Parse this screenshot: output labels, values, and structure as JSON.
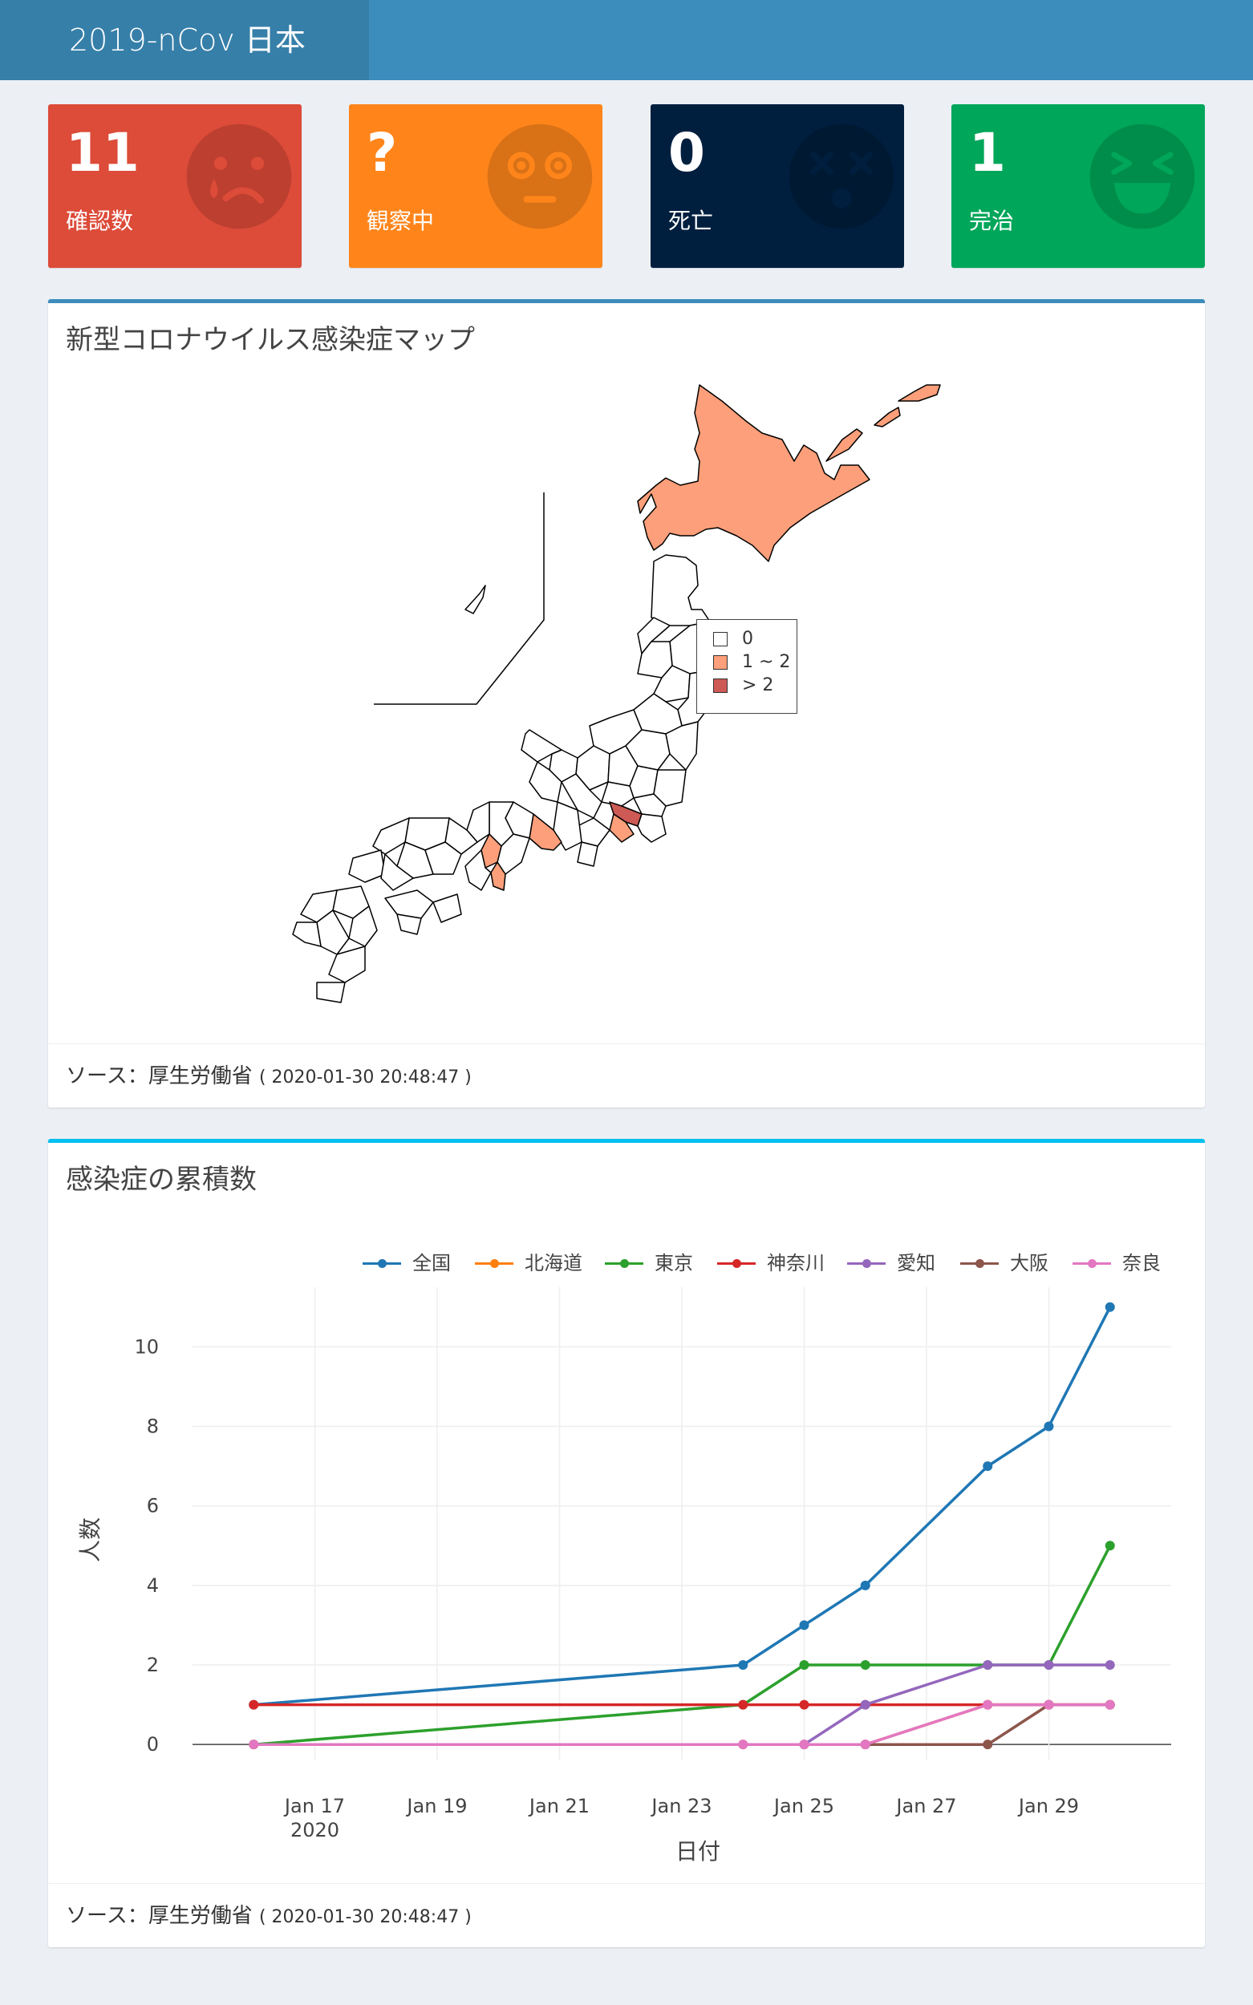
{
  "app": {
    "title": "2019-nCov 日本"
  },
  "boxes": [
    {
      "value": "11",
      "label": "確認数",
      "color": "#dd4b39",
      "icon": "crying-face-icon"
    },
    {
      "value": "?",
      "label": "観察中",
      "color": "#ff851b",
      "icon": "flushed-face-icon"
    },
    {
      "value": "0",
      "label": "死亡",
      "color": "#001f3f",
      "icon": "dizzy-face-icon"
    },
    {
      "value": "1",
      "label": "完治",
      "color": "#00a65a",
      "icon": "laughing-face-icon"
    }
  ],
  "map_panel": {
    "title": "新型コロナウイルス感染症マップ",
    "legend": [
      {
        "label": "0",
        "color": "#ffffff"
      },
      {
        "label": "1 ~ 2",
        "color": "#fc9f7a"
      },
      {
        "label": "> 2",
        "color": "#cd5a55"
      }
    ],
    "footer": {
      "source": "ソース：厚生労働省",
      "timestamp": "( 2020-01-30 20:48:47 )"
    }
  },
  "chart_panel": {
    "title": "感染症の累積数",
    "footer": {
      "source": "ソース：厚生労働省",
      "timestamp": "( 2020-01-30 20:48:47 )"
    }
  },
  "chart_data": {
    "type": "line",
    "xlabel": "日付",
    "ylabel": "人数",
    "x_ticks": [
      "Jan 17",
      "Jan 19",
      "Jan 21",
      "Jan 23",
      "Jan 25",
      "Jan 27",
      "Jan 29"
    ],
    "x_tick_sub": "2020",
    "y_ticks": [
      "0",
      "2",
      "4",
      "6",
      "8",
      "10"
    ],
    "xlim": [
      "2020-01-15",
      "2020-01-31"
    ],
    "ylim": [
      -0.4,
      11.5
    ],
    "grid": true,
    "legend_position": "top-right",
    "series": [
      {
        "name": "全国",
        "color": "#1f77b4",
        "points": [
          [
            "2020-01-16",
            1
          ],
          [
            "2020-01-24",
            2
          ],
          [
            "2020-01-25",
            3
          ],
          [
            "2020-01-26",
            4
          ],
          [
            "2020-01-28",
            7
          ],
          [
            "2020-01-29",
            8
          ],
          [
            "2020-01-30",
            11
          ]
        ]
      },
      {
        "name": "北海道",
        "color": "#ff7f0e",
        "points": [
          [
            "2020-01-16",
            0
          ],
          [
            "2020-01-24",
            0
          ],
          [
            "2020-01-25",
            0
          ],
          [
            "2020-01-26",
            0
          ],
          [
            "2020-01-28",
            1
          ],
          [
            "2020-01-29",
            1
          ],
          [
            "2020-01-30",
            1
          ]
        ]
      },
      {
        "name": "東京",
        "color": "#2ca02c",
        "points": [
          [
            "2020-01-16",
            0
          ],
          [
            "2020-01-24",
            1
          ],
          [
            "2020-01-25",
            2
          ],
          [
            "2020-01-26",
            2
          ],
          [
            "2020-01-28",
            2
          ],
          [
            "2020-01-29",
            2
          ],
          [
            "2020-01-30",
            5
          ]
        ]
      },
      {
        "name": "神奈川",
        "color": "#d62728",
        "points": [
          [
            "2020-01-16",
            1
          ],
          [
            "2020-01-24",
            1
          ],
          [
            "2020-01-25",
            1
          ],
          [
            "2020-01-26",
            1
          ],
          [
            "2020-01-28",
            1
          ],
          [
            "2020-01-29",
            1
          ],
          [
            "2020-01-30",
            1
          ]
        ]
      },
      {
        "name": "愛知",
        "color": "#9467bd",
        "points": [
          [
            "2020-01-25",
            0
          ],
          [
            "2020-01-26",
            1
          ],
          [
            "2020-01-28",
            2
          ],
          [
            "2020-01-29",
            2
          ],
          [
            "2020-01-30",
            2
          ]
        ]
      },
      {
        "name": "大阪",
        "color": "#8c564b",
        "points": [
          [
            "2020-01-26",
            0
          ],
          [
            "2020-01-28",
            0
          ],
          [
            "2020-01-29",
            1
          ],
          [
            "2020-01-30",
            1
          ]
        ]
      },
      {
        "name": "奈良",
        "color": "#e377c2",
        "points": [
          [
            "2020-01-16",
            0
          ],
          [
            "2020-01-24",
            0
          ],
          [
            "2020-01-25",
            0
          ],
          [
            "2020-01-26",
            0
          ],
          [
            "2020-01-28",
            1
          ],
          [
            "2020-01-29",
            1
          ],
          [
            "2020-01-30",
            1
          ]
        ]
      }
    ]
  }
}
